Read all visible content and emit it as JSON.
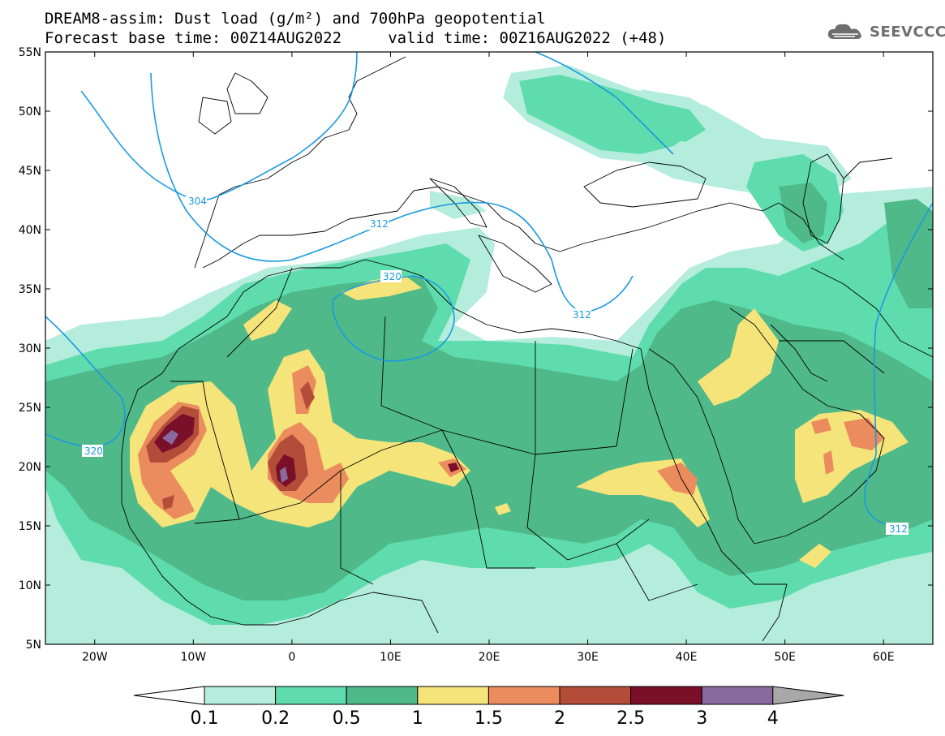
{
  "header": {
    "title_line1": "DREAM8-assim: Dust load (g/m²) and 700hPa geopotential",
    "title_line2": "Forecast base time: 00Z14AUG2022     valid time: 00Z16AUG2022 (+48)",
    "logo_text": "SEEVCCC"
  },
  "map": {
    "lon_range": [
      -25,
      65
    ],
    "lat_range": [
      5,
      55
    ],
    "lat_labels": [
      "55N",
      "50N",
      "45N",
      "40N",
      "35N",
      "30N",
      "25N",
      "20N",
      "15N",
      "10N",
      "5N"
    ],
    "lon_labels": [
      "20W",
      "10W",
      "0",
      "10E",
      "20E",
      "30E",
      "40E",
      "50E",
      "60E"
    ],
    "contour_labels": [
      "304",
      "312",
      "320",
      "320",
      "312",
      "312"
    ],
    "contour_color": "#1a9be0"
  },
  "colorbar": {
    "labels": [
      "0.1",
      "0.2",
      "0.5",
      "1",
      "1.5",
      "2",
      "2.5",
      "3",
      "4"
    ],
    "colors": [
      "#b5eddc",
      "#5fdcad",
      "#4fb98a",
      "#f5e47a",
      "#ea8c5e",
      "#b34d3a",
      "#7a0f2a",
      "#8a6a9e",
      "#a8a8a8"
    ]
  }
}
